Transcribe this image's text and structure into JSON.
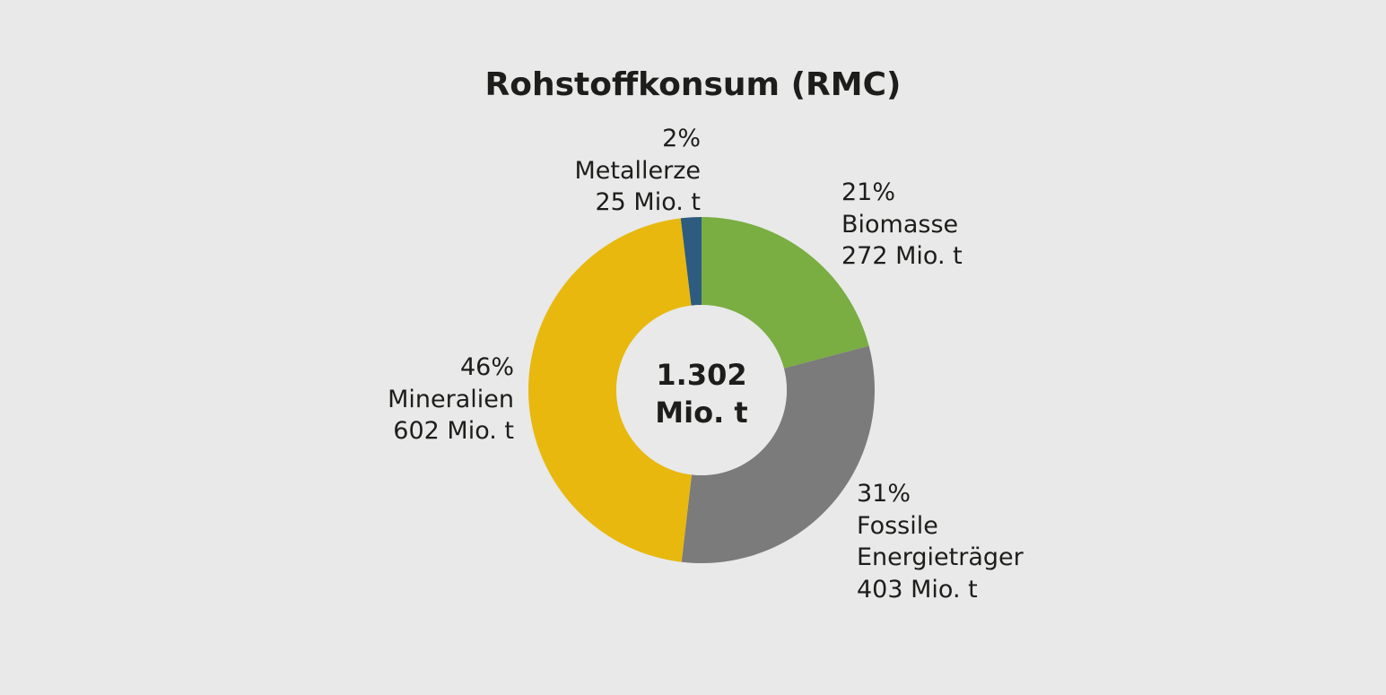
{
  "chart_data": {
    "type": "donut",
    "title": "Rohstoffkonsum (RMC)",
    "categories": [
      "Biomasse",
      "Fossile\nEnergieträger",
      "Mineralien",
      "Metallerze"
    ],
    "values": [
      272,
      403,
      602,
      25
    ],
    "value_labels": [
      "272 Mio. t",
      "403 Mio. t",
      "602 Mio. t",
      "25 Mio. t"
    ],
    "percent_labels": [
      "21%",
      "31%",
      "46%",
      "2%"
    ],
    "colors": [
      "#7aad42",
      "#7b7b7c",
      "#e8b80f",
      "#2e5b80"
    ],
    "center_text": [
      "1.302",
      "Mio. t"
    ]
  }
}
